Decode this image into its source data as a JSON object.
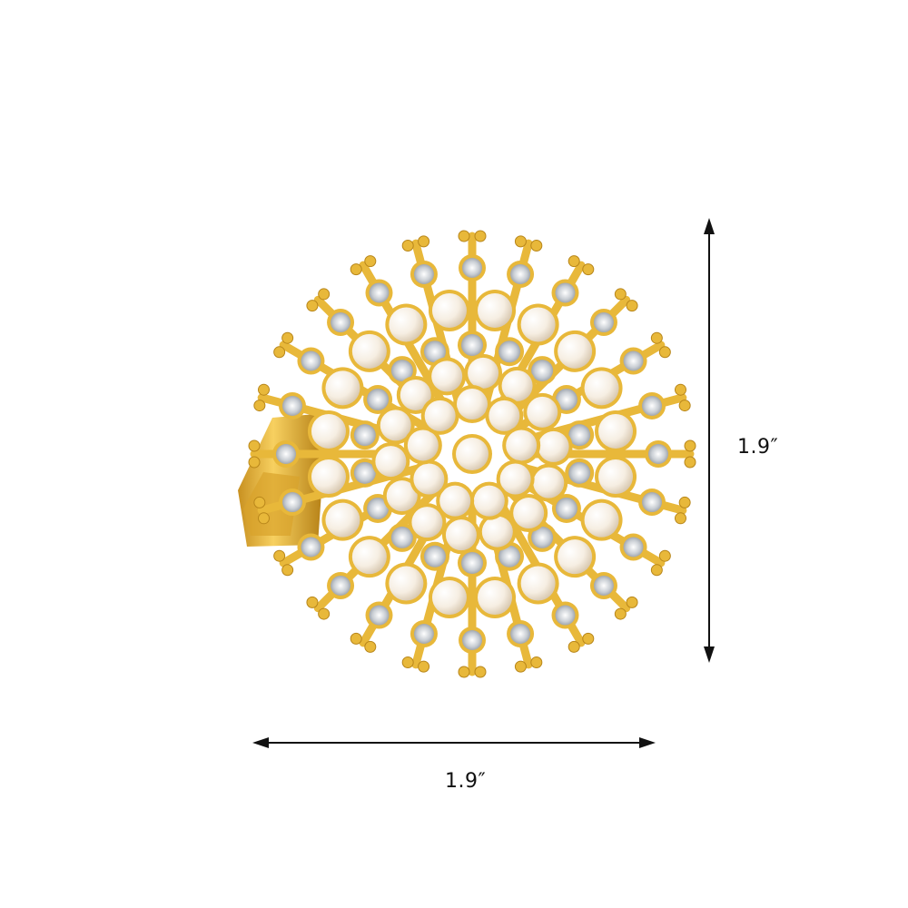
{
  "image": {
    "subject": "ring-icon",
    "colors": {
      "gold": "#E8B83A",
      "gold_dark": "#B8861A",
      "pearl": "#FBF4EA",
      "crystal": "#D9DDE2",
      "arrow": "#111111",
      "background": "#FFFFFF"
    }
  },
  "dimensions": {
    "height_label": "1.9″",
    "width_label": "1.9″"
  }
}
